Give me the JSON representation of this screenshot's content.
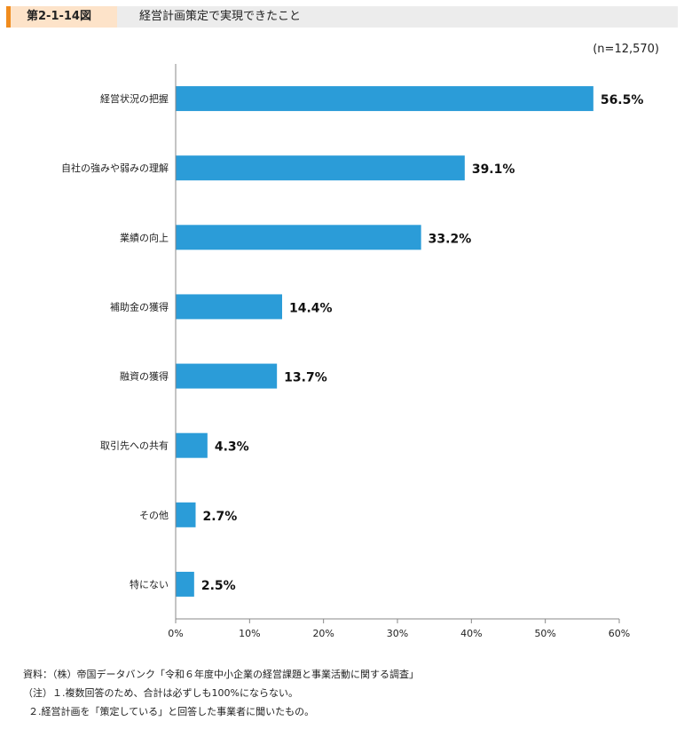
{
  "header": {
    "figure_number": "第2-1-14図",
    "title": "経営計画策定で実現できたこと"
  },
  "sample_note": "(n=12,570)",
  "chart_data": {
    "type": "bar",
    "orientation": "horizontal",
    "title": "経営計画策定で実現できたこと",
    "categories": [
      "経営状況の把握",
      "自社の強みや弱みの理解",
      "業績の向上",
      "補助金の獲得",
      "融資の獲得",
      "取引先への共有",
      "その他",
      "特にない"
    ],
    "values": [
      56.5,
      39.1,
      33.2,
      14.4,
      13.7,
      4.3,
      2.7,
      2.5
    ],
    "value_labels": [
      "56.5%",
      "39.1%",
      "33.2%",
      "14.4%",
      "13.7%",
      "4.3%",
      "2.7%",
      "2.5%"
    ],
    "xlim": [
      0,
      60
    ],
    "xticks": [
      0,
      10,
      20,
      30,
      40,
      50,
      60
    ],
    "xtick_labels": [
      "0%",
      "10%",
      "20%",
      "30%",
      "40%",
      "50%",
      "60%"
    ],
    "grid": false,
    "bar_color": "#2b9cd8"
  },
  "notes": [
    "資料：（株）帝国データバンク「令和６年度中小企業の経営課題と事業活動に関する調査」",
    "（注）１.複数回答のため、合計は必ずしも100%にならない。",
    "２.経営計画を「策定している」と回答した事業者に聞いたもの。"
  ],
  "colors": {
    "accent": "#f08c1e",
    "figure_number_bg": "#fde3c9",
    "header_bg": "#ececec",
    "bar": "#2b9cd8",
    "axis": "#888888"
  }
}
